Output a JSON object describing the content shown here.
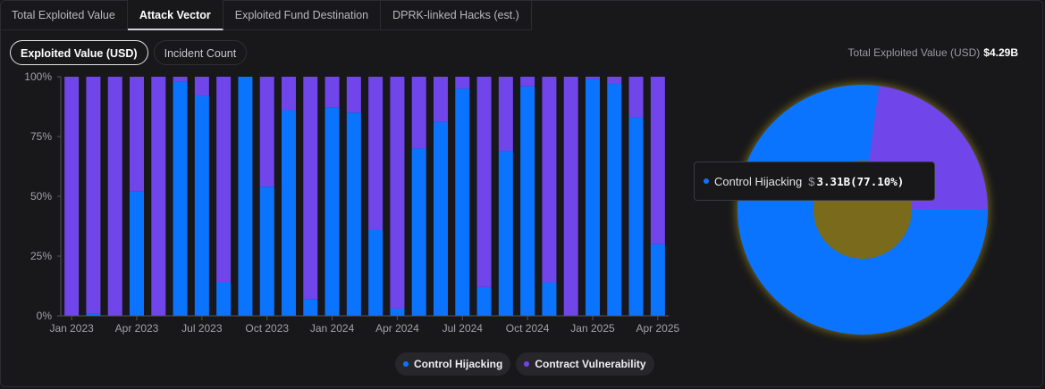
{
  "tabs": [
    {
      "label": "Total Exploited Value",
      "active": false
    },
    {
      "label": "Attack Vector",
      "active": true
    },
    {
      "label": "Exploited Fund Destination",
      "active": false
    },
    {
      "label": "DPRK-linked Hacks (est.)",
      "active": false
    }
  ],
  "toggle": {
    "value_label": "Exploited Value (USD)",
    "count_label": "Incident Count"
  },
  "total": {
    "label": "Total Exploited Value (USD)",
    "value": "$4.29B"
  },
  "tooltip": {
    "series": "Control Hijacking",
    "currency": "$",
    "value": "3.31B(77.10%)"
  },
  "legend": [
    {
      "name": "Control Hijacking",
      "color": "#0a74ff"
    },
    {
      "name": "Contract Vulnerability",
      "color": "#7045ea"
    }
  ],
  "colors": {
    "control": "#0a74ff",
    "contract": "#7045ea"
  },
  "chart_data": [
    {
      "type": "bar",
      "stacked": true,
      "y_ticks": [
        "0%",
        "25%",
        "50%",
        "75%",
        "100%"
      ],
      "ylim": [
        0,
        100
      ],
      "x_tick_labels": [
        "Jan 2023",
        "Apr 2023",
        "Jul 2023",
        "Oct 2023",
        "Jan 2024",
        "Apr 2024",
        "Jul 2024",
        "Oct 2024",
        "Jan 2025",
        "Apr 2025"
      ],
      "x_tick_positions": [
        0,
        3,
        6,
        9,
        12,
        15,
        18,
        21,
        24,
        27
      ],
      "categories": [
        "2023-01",
        "2023-02",
        "2023-03",
        "2023-04",
        "2023-05",
        "2023-06",
        "2023-07",
        "2023-08",
        "2023-09",
        "2023-10",
        "2023-11",
        "2023-12",
        "2024-01",
        "2024-02",
        "2024-03",
        "2024-04",
        "2024-05",
        "2024-06",
        "2024-07",
        "2024-08",
        "2024-09",
        "2024-10",
        "2024-11",
        "2024-12",
        "2025-01",
        "2025-02",
        "2025-03",
        "2025-04"
      ],
      "series": [
        {
          "name": "Control Hijacking",
          "values": [
            0,
            1,
            0,
            52,
            0,
            98,
            92,
            14,
            100,
            54,
            86,
            7,
            87,
            85,
            36,
            3,
            70,
            81,
            95,
            12,
            69,
            96,
            14,
            0,
            99,
            97,
            83,
            30
          ]
        },
        {
          "name": "Contract Vulnerability",
          "values": [
            100,
            99,
            100,
            48,
            100,
            2,
            8,
            86,
            0,
            46,
            14,
            93,
            13,
            15,
            64,
            97,
            30,
            19,
            5,
            88,
            31,
            4,
            86,
            100,
            1,
            3,
            17,
            70
          ]
        }
      ]
    },
    {
      "type": "pie",
      "donut": true,
      "slices": [
        {
          "name": "Control Hijacking",
          "value": 77.1
        },
        {
          "name": "Contract Vulnerability",
          "value": 22.9
        }
      ]
    }
  ]
}
